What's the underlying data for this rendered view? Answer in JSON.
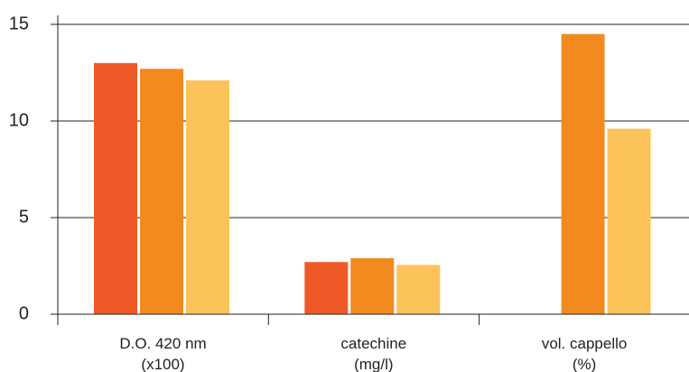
{
  "chart_data": {
    "type": "bar",
    "categories": [
      {
        "line1": "D.O. 420 nm",
        "line2": "(x100)"
      },
      {
        "line1": "catechine",
        "line2": "(mg/l)"
      },
      {
        "line1": "vol. cappello",
        "line2": "(%)"
      }
    ],
    "series": [
      {
        "color": "#f05a28",
        "values": [
          13.0,
          2.7,
          null
        ]
      },
      {
        "color": "#f28a20",
        "values": [
          12.7,
          2.9,
          14.5
        ]
      },
      {
        "color": "#fcc35a",
        "values": [
          12.1,
          2.55,
          9.6
        ]
      }
    ],
    "ylim": [
      0,
      15
    ],
    "yticks": [
      0,
      5,
      10,
      15
    ],
    "grid": true
  }
}
